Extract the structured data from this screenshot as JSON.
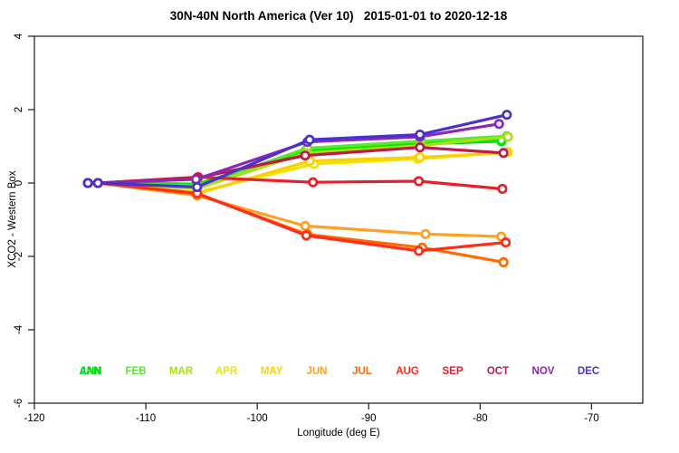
{
  "title": "30N-40N North America (Ver 10)   2015-01-01 to 2020-12-18",
  "chart_data": {
    "type": "line",
    "title": "30N-40N North America (Ver 10)   2015-01-01 to 2020-12-18",
    "xlabel": "Longitude (deg E)",
    "ylabel": "XCO2 - Western Box",
    "xlim": [
      -120,
      -65.4
    ],
    "ylim": [
      -6,
      4
    ],
    "x_ticks": [
      -120,
      -110,
      -100,
      -90,
      -80,
      -70
    ],
    "x_tick_labels": [
      "-120",
      "-110",
      "-100",
      "-90",
      "-80",
      "-70"
    ],
    "y_ticks": [
      4,
      2,
      0,
      -2,
      -4,
      -6
    ],
    "y_tick_labels": [
      "4",
      "2",
      "0",
      "-2",
      "-4",
      "-6"
    ],
    "grid": false,
    "marker": "open-circle",
    "legend_position": "inside-bottom-row",
    "legend": [
      {
        "label": "ANN",
        "color": "#00C832"
      },
      {
        "label": "JAN",
        "color": "#00E800"
      },
      {
        "label": "FEB",
        "color": "#58E830"
      },
      {
        "label": "MAR",
        "color": "#A8E018"
      },
      {
        "label": "APR",
        "color": "#E8E800"
      },
      {
        "label": "MAY",
        "color": "#FFD000"
      },
      {
        "label": "JUN",
        "color": "#FFA020"
      },
      {
        "label": "JUL",
        "color": "#FF6A00"
      },
      {
        "label": "AUG",
        "color": "#FF2D16"
      },
      {
        "label": "SEP",
        "color": "#E81E2C"
      },
      {
        "label": "OCT",
        "color": "#C01848"
      },
      {
        "label": "NOV",
        "color": "#8A28B8"
      },
      {
        "label": "DEC",
        "color": "#4A30D0"
      }
    ],
    "series": [
      {
        "name": "ANN",
        "color": "#00C832",
        "x": [
          -115.2,
          -114.3,
          -105.4,
          -95.7,
          -85.5,
          -78.1
        ],
        "y": [
          0,
          0,
          -0.03,
          0.86,
          1.06,
          1.14
        ]
      },
      {
        "name": "JAN",
        "color": "#00E800",
        "x": [
          -115.2,
          -114.3,
          -105.4,
          -95.7,
          -85.5,
          -78.1
        ],
        "y": [
          0,
          0,
          -0.03,
          0.87,
          1.08,
          1.16
        ]
      },
      {
        "name": "FEB",
        "color": "#58E830",
        "x": [
          -115.2,
          -114.3,
          -105.3,
          -95.5,
          -85.3,
          -77.6
        ],
        "y": [
          0,
          0,
          -0.08,
          0.95,
          1.14,
          1.28
        ]
      },
      {
        "name": "MAR",
        "color": "#A8E018",
        "x": [
          -115.2,
          -114.3,
          -105.4,
          -95.6,
          -85.4,
          -77.5
        ],
        "y": [
          0,
          0,
          -0.15,
          0.82,
          1.02,
          1.26
        ]
      },
      {
        "name": "APR",
        "color": "#E8E800",
        "x": [
          -115.2,
          -114.3,
          -105.4,
          -94.9,
          -85.6,
          -77.5
        ],
        "y": [
          0,
          0,
          -0.25,
          0.52,
          0.66,
          0.84
        ]
      },
      {
        "name": "MAY",
        "color": "#FFD000",
        "x": [
          -115.2,
          -114.3,
          -105.3,
          -95.3,
          -85.4,
          -77.6
        ],
        "y": [
          0,
          0,
          -0.28,
          0.6,
          0.7,
          0.83
        ]
      },
      {
        "name": "JUN",
        "color": "#FFA020",
        "x": [
          -115.2,
          -114.3,
          -105.4,
          -95.7,
          -84.9,
          -78.1
        ],
        "y": [
          0,
          0,
          -0.34,
          -1.17,
          -1.39,
          -1.46
        ]
      },
      {
        "name": "JUL",
        "color": "#FF6A00",
        "x": [
          -115.2,
          -114.3,
          -105.4,
          -95.5,
          -85.2,
          -77.9
        ],
        "y": [
          0,
          0,
          -0.3,
          -1.4,
          -1.76,
          -2.16
        ]
      },
      {
        "name": "AUG",
        "color": "#FF2D16",
        "x": [
          -115.2,
          -114.3,
          -105.4,
          -95.6,
          -85.5,
          -77.7
        ],
        "y": [
          0,
          0,
          -0.28,
          -1.43,
          -1.85,
          -1.62
        ]
      },
      {
        "name": "SEP",
        "color": "#E81E2C",
        "x": [
          -115.2,
          -114.3,
          -105.3,
          -95.0,
          -85.5,
          -78.0
        ],
        "y": [
          0,
          0,
          0.16,
          0.02,
          0.05,
          -0.16
        ]
      },
      {
        "name": "OCT",
        "color": "#C01848",
        "x": [
          -115.2,
          -114.3,
          -105.4,
          -95.7,
          -85.4,
          -77.9
        ],
        "y": [
          0,
          0,
          0.14,
          0.75,
          0.97,
          0.82
        ]
      },
      {
        "name": "NOV",
        "color": "#8A28B8",
        "x": [
          -115.2,
          -114.3,
          -105.5,
          -95.5,
          -85.4,
          -78.3
        ],
        "y": [
          0,
          0,
          0.1,
          1.12,
          1.26,
          1.61
        ]
      },
      {
        "name": "DEC",
        "color": "#4A30D0",
        "x": [
          -115.2,
          -114.3,
          -105.4,
          -95.3,
          -85.4,
          -77.6
        ],
        "y": [
          0,
          0,
          -0.11,
          1.18,
          1.32,
          1.86
        ]
      }
    ]
  }
}
